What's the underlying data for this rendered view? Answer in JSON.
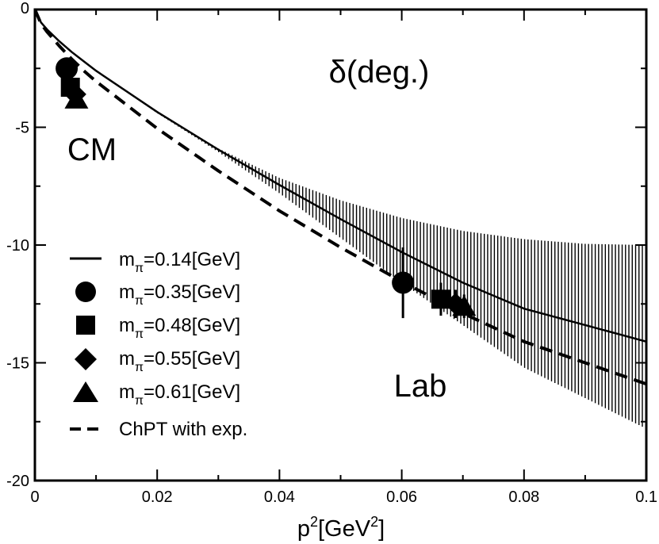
{
  "chart_data": {
    "type": "scatter",
    "xlabel": "p",
    "xlabel_unit": "[GeV",
    "xlabel_close": "]",
    "xlabel_sup": "2",
    "ylabel": "",
    "xlim": [
      0,
      0.1
    ],
    "ylim": [
      -20,
      0
    ],
    "x_ticks": [
      0,
      0.02,
      0.04,
      0.06,
      0.08,
      0.1
    ],
    "x_tick_labels": [
      "0",
      "0.02",
      "0.04",
      "0.06",
      "0.08",
      "0.1"
    ],
    "y_ticks": [
      0,
      -5,
      -10,
      -15,
      -20
    ],
    "y_tick_labels": [
      "0",
      "-5",
      "-10",
      "-15",
      "-20"
    ],
    "annotations": {
      "delta": "δ(deg.)",
      "cm": "CM",
      "lab": "Lab"
    },
    "series": [
      {
        "name": "m_π=0.14[GeV]",
        "legend": {
          "main": "m",
          "sub": "π",
          "rest": "=0.14[GeV]"
        },
        "kind": "line-solid",
        "x": [
          0,
          0.001,
          0.002,
          0.004,
          0.006,
          0.008,
          0.01,
          0.02,
          0.03,
          0.04,
          0.05,
          0.06,
          0.07,
          0.08,
          0.09,
          0.1
        ],
        "y": [
          0,
          -0.55,
          -0.85,
          -1.35,
          -1.8,
          -2.2,
          -2.6,
          -4.35,
          -5.95,
          -7.45,
          -8.9,
          -10.3,
          -11.6,
          -12.7,
          -13.4,
          -14.1
        ],
        "band": {
          "x": [
            0.002,
            0.01,
            0.02,
            0.03,
            0.04,
            0.05,
            0.06,
            0.07,
            0.08,
            0.09,
            0.1
          ],
          "upper": [
            -0.85,
            -2.6,
            -4.35,
            -5.9,
            -7.15,
            -8.1,
            -8.85,
            -9.4,
            -9.75,
            -9.95,
            -10.0
          ],
          "lower": [
            -0.85,
            -2.6,
            -4.4,
            -6.05,
            -7.8,
            -9.7,
            -11.6,
            -13.4,
            -15.2,
            -16.5,
            -17.8
          ]
        }
      },
      {
        "name": "m_π=0.35[GeV]",
        "legend": {
          "main": "m",
          "sub": "π",
          "rest": "=0.35[GeV]"
        },
        "kind": "circle",
        "points": [
          {
            "x": 0.0052,
            "y": -2.5,
            "err": 0.0
          },
          {
            "x": 0.0602,
            "y": -11.6,
            "err": 1.5
          }
        ]
      },
      {
        "name": "m_π=0.48[GeV]",
        "legend": {
          "main": "m",
          "sub": "π",
          "rest": "=0.48[GeV]"
        },
        "kind": "square",
        "points": [
          {
            "x": 0.0058,
            "y": -3.3,
            "err": 0.0
          },
          {
            "x": 0.0664,
            "y": -12.3,
            "err": 0.7
          }
        ]
      },
      {
        "name": "m_π=0.55[GeV]",
        "legend": {
          "main": "m",
          "sub": "π",
          "rest": "=0.55[GeV]"
        },
        "kind": "diamond",
        "points": [
          {
            "x": 0.0066,
            "y": -3.6,
            "err": 0.0
          },
          {
            "x": 0.0688,
            "y": -12.5,
            "err": 0.6
          }
        ]
      },
      {
        "name": "m_π=0.61[GeV]",
        "legend": {
          "main": "m",
          "sub": "π",
          "rest": "=0.61[GeV]"
        },
        "kind": "triangle",
        "points": [
          {
            "x": 0.0068,
            "y": -3.8,
            "err": 0.0
          },
          {
            "x": 0.0702,
            "y": -12.6,
            "err": 0.5
          }
        ]
      },
      {
        "name": "ChPT with exp.",
        "legend": {
          "main": "ChPT with exp.",
          "sub": "",
          "rest": ""
        },
        "kind": "line-dashed",
        "x": [
          0,
          0.001,
          0.002,
          0.004,
          0.006,
          0.008,
          0.01,
          0.02,
          0.03,
          0.04,
          0.05,
          0.06,
          0.07,
          0.08,
          0.09,
          0.1
        ],
        "y": [
          0,
          -0.6,
          -0.95,
          -1.55,
          -2.1,
          -2.6,
          -3.05,
          -5.05,
          -6.85,
          -8.55,
          -10.1,
          -11.55,
          -12.9,
          -14.1,
          -15.0,
          -15.9
        ]
      }
    ]
  }
}
